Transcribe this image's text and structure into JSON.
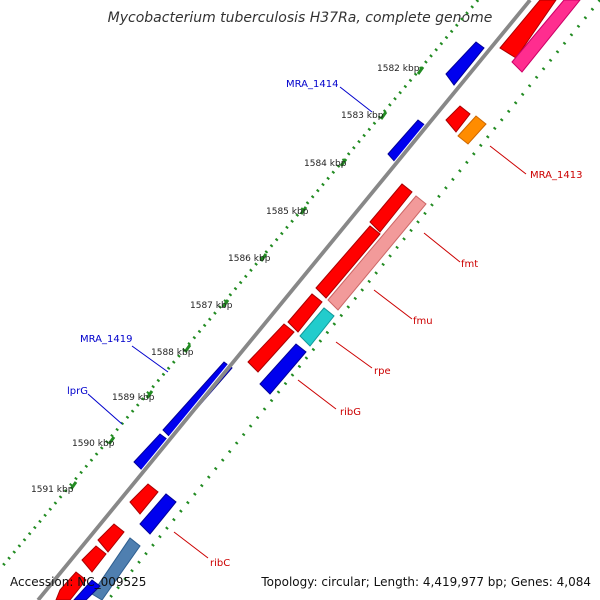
{
  "title": "Mycobacterium tuberculosis H37Ra, complete genome",
  "footer": {
    "accession": "Accession: NC_009525",
    "stats": "Topology: circular; Length: 4,419,977 bp; Genes: 4,084"
  },
  "ticks": [
    {
      "label": "1582 kbp"
    },
    {
      "label": "1583 kbp"
    },
    {
      "label": "1584 kbp"
    },
    {
      "label": "1585 kbp"
    },
    {
      "label": "1586 kbp"
    },
    {
      "label": "1587 kbp"
    },
    {
      "label": "1588 kbp"
    },
    {
      "label": "1589 kbp"
    },
    {
      "label": "1590 kbp"
    },
    {
      "label": "1591 kbp"
    }
  ],
  "labels": {
    "mra1414": "MRA_1414",
    "mra1413": "MRA_1413",
    "fmt": "fmt",
    "fmu": "fmu",
    "mra1419": "MRA_1419",
    "lprg": "lprG",
    "rpe": "rpe",
    "ribg": "ribG",
    "ribc": "ribC"
  },
  "colors": {
    "forward": "#ff0000",
    "reverse": "#0000ee",
    "backbone": "#888888",
    "tick": "#228b22",
    "label_forward": "#cc0000",
    "label_reverse": "#0000cc",
    "fmu_track": "#f29a9a",
    "rpe_track": "#22cccc",
    "mra1413_track": "#ff8c00",
    "ribc_track": "#4f7fb0",
    "top_track": "#ff2d8f"
  }
}
